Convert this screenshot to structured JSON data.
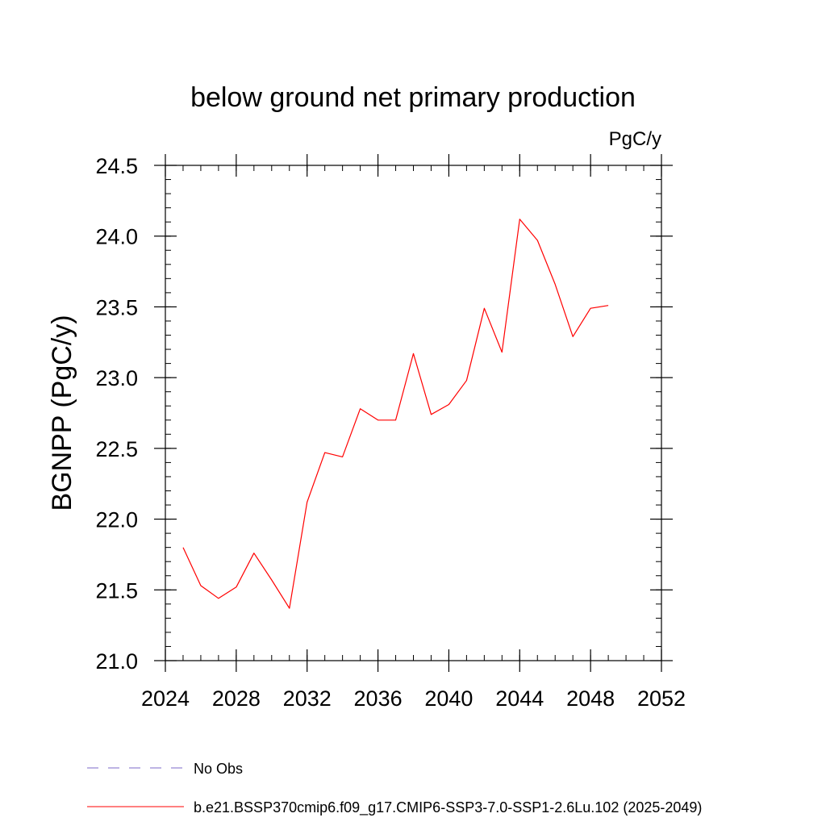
{
  "chart_data": {
    "type": "line",
    "title": "below ground net primary production",
    "units": "PgC/y",
    "ylabel": "BGNPP  (PgC/y)",
    "xlabel": "",
    "xlim": [
      2024,
      2052
    ],
    "ylim": [
      21.0,
      24.5
    ],
    "xticks": [
      2024,
      2028,
      2032,
      2036,
      2040,
      2044,
      2048,
      2052
    ],
    "xtick_labels": [
      "2024",
      "2028",
      "2032",
      "2036",
      "2040",
      "2044",
      "2048",
      "2052"
    ],
    "yticks": [
      21.0,
      21.5,
      22.0,
      22.5,
      23.0,
      23.5,
      24.0,
      24.5
    ],
    "ytick_labels": [
      "21.0",
      "21.5",
      "22.0",
      "22.5",
      "23.0",
      "23.5",
      "24.0",
      "24.5"
    ],
    "grid": false,
    "legend_position": "bottom",
    "series": [
      {
        "name": "b.e21.BSSP370cmip6.f09_g17.CMIP6-SSP3-7.0-SSP1-2.6Lu.102 (2025-2049)",
        "color": "#ff0000",
        "x": [
          2025,
          2026,
          2027,
          2028,
          2029,
          2030,
          2031,
          2032,
          2033,
          2034,
          2035,
          2036,
          2037,
          2038,
          2039,
          2040,
          2041,
          2042,
          2043,
          2044,
          2045,
          2046,
          2047,
          2048,
          2049
        ],
        "values": [
          21.8,
          21.53,
          21.44,
          21.52,
          21.76,
          21.57,
          21.37,
          22.12,
          22.47,
          22.44,
          22.78,
          22.7,
          22.7,
          23.17,
          22.74,
          22.81,
          22.98,
          23.49,
          23.18,
          24.12,
          23.97,
          23.66,
          23.29,
          23.49,
          23.51
        ]
      }
    ],
    "legend": [
      {
        "label": "No Obs",
        "color": "#7b68c8",
        "style": "dashed"
      },
      {
        "label": "b.e21.BSSP370cmip6.f09_g17.CMIP6-SSP3-7.0-SSP1-2.6Lu.102 (2025-2049)",
        "color": "#ff0000",
        "style": "solid"
      }
    ]
  }
}
